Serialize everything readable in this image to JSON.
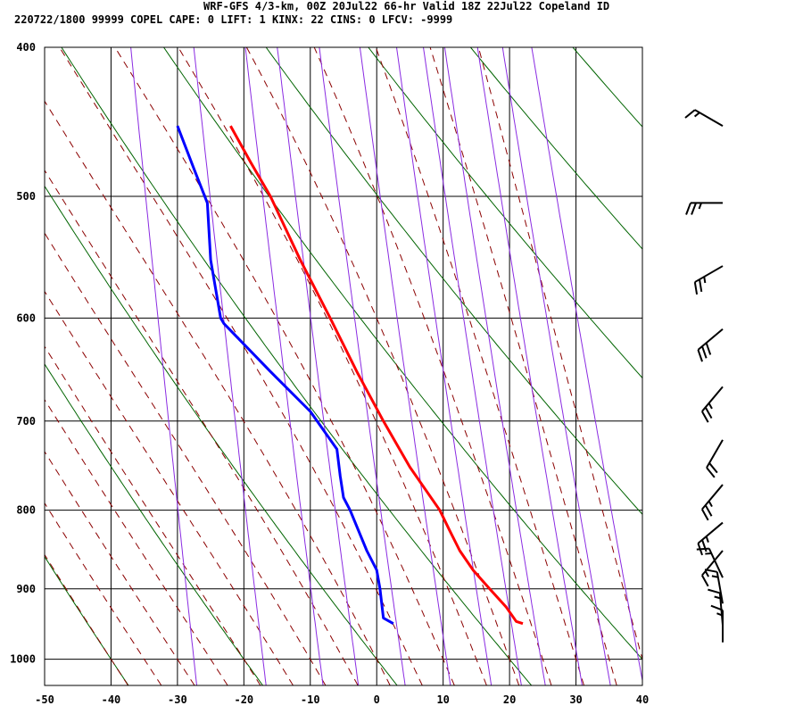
{
  "header": {
    "line1": "WRF-GFS 4/3-km, 00Z 20Jul22 66-hr Valid 18Z 22Jul22 Copeland ID",
    "line2": "220722/1800 99999  COPEL   CAPE:     0 LIFT:     1 KINX:    22 CINS:     0 LFCV: -9999"
  },
  "colors": {
    "frame": "#000000",
    "temperature": "#ff0000",
    "dewpoint": "#0000ff",
    "dry_adiabat": "#006400",
    "moist_adiabat": "#8b0000",
    "mixing_ratio": "#8a2be2",
    "wind_barb": "#000000"
  },
  "chart_data": {
    "type": "skew-t",
    "x_ticks": [
      -50,
      -40,
      -30,
      -20,
      -10,
      0,
      10,
      20,
      30,
      40
    ],
    "y_ticks": [
      400,
      500,
      600,
      700,
      800,
      900,
      1000
    ],
    "xlim": [
      -50,
      40
    ],
    "ylim": [
      1040,
      400
    ],
    "y_scale": "log",
    "grid": true,
    "series": [
      {
        "key": "temperature",
        "points": [
          [
            450,
            -22
          ],
          [
            475,
            -19
          ],
          [
            500,
            -16
          ],
          [
            550,
            -11.5
          ],
          [
            600,
            -7
          ],
          [
            650,
            -3
          ],
          [
            700,
            1
          ],
          [
            750,
            5
          ],
          [
            800,
            9.5
          ],
          [
            825,
            11
          ],
          [
            850,
            12.5
          ],
          [
            875,
            14.5
          ],
          [
            900,
            17
          ],
          [
            925,
            19.5
          ],
          [
            945,
            21
          ],
          [
            948,
            22
          ]
        ]
      },
      {
        "key": "dewpoint",
        "points": [
          [
            450,
            -30
          ],
          [
            480,
            -27.5
          ],
          [
            505,
            -25.5
          ],
          [
            550,
            -25
          ],
          [
            600,
            -23.5
          ],
          [
            605,
            -23
          ],
          [
            650,
            -16
          ],
          [
            690,
            -10
          ],
          [
            730,
            -6
          ],
          [
            760,
            -5.5
          ],
          [
            785,
            -5
          ],
          [
            800,
            -4
          ],
          [
            850,
            -1.5
          ],
          [
            875,
            0
          ],
          [
            900,
            0.5
          ],
          [
            940,
            1
          ],
          [
            948,
            2.5
          ]
        ]
      }
    ],
    "wind_barbs": [
      {
        "p": 450,
        "dir": 300,
        "speed": 15
      },
      {
        "p": 505,
        "dir": 270,
        "speed": 25
      },
      {
        "p": 555,
        "dir": 240,
        "speed": 25
      },
      {
        "p": 610,
        "dir": 230,
        "speed": 30
      },
      {
        "p": 665,
        "dir": 220,
        "speed": 25
      },
      {
        "p": 720,
        "dir": 210,
        "speed": 20
      },
      {
        "p": 770,
        "dir": 220,
        "speed": 25
      },
      {
        "p": 815,
        "dir": 230,
        "speed": 25
      },
      {
        "p": 850,
        "dir": 220,
        "speed": 15
      },
      {
        "p": 885,
        "dir": 335,
        "speed": 15
      },
      {
        "p": 920,
        "dir": 350,
        "speed": 15
      },
      {
        "p": 950,
        "dir": 355,
        "speed": 15
      },
      {
        "p": 975,
        "dir": 0,
        "speed": 15
      }
    ]
  }
}
